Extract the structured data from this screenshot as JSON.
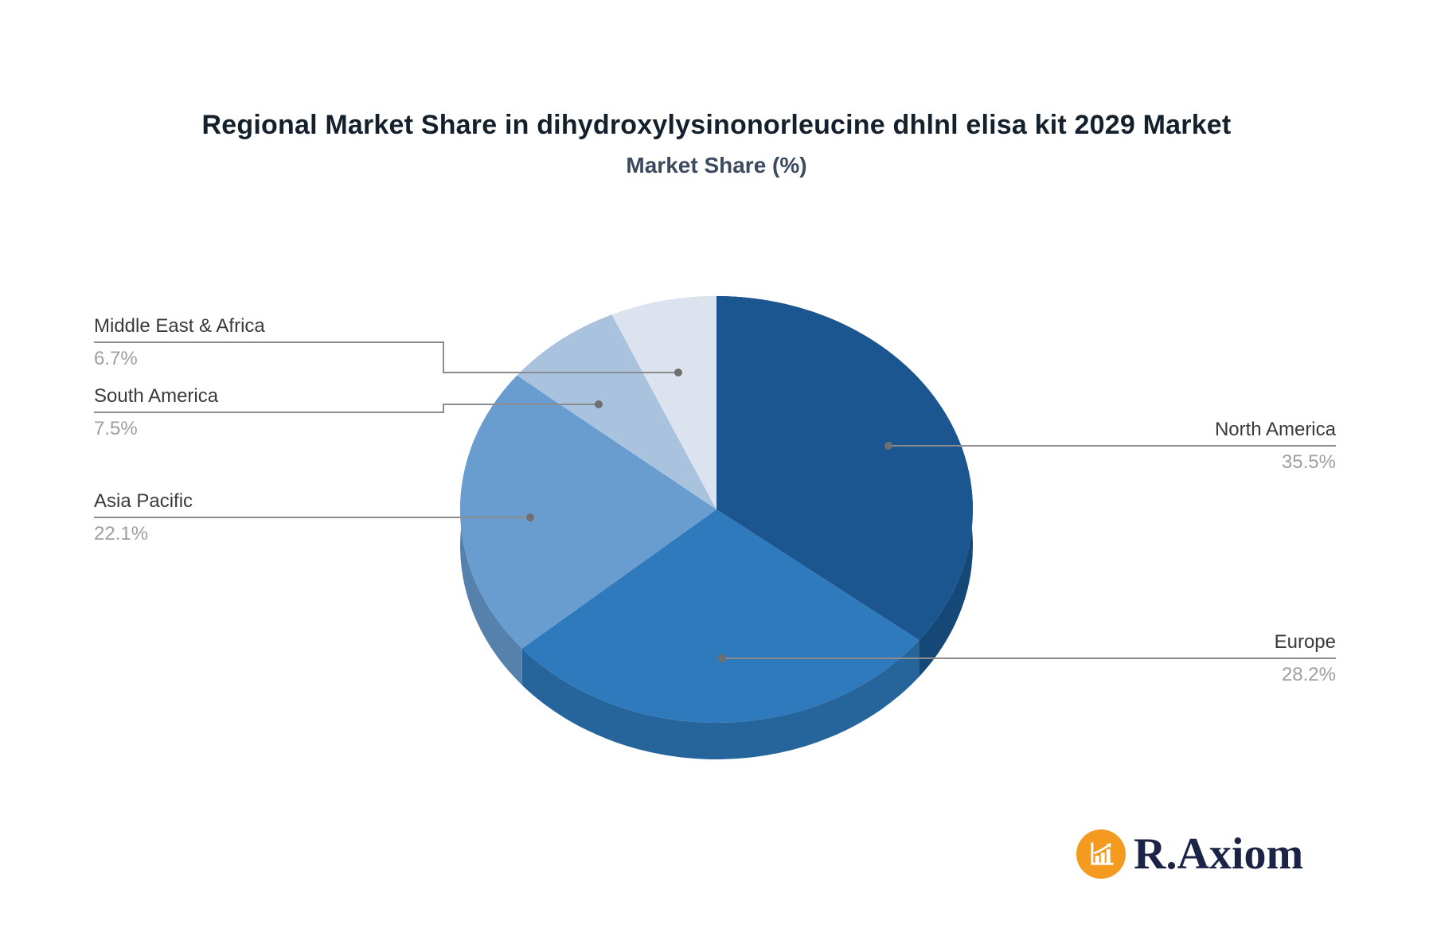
{
  "page": {
    "background": "#ffffff"
  },
  "header": {
    "title": "Regional Market Share in dihydroxylysinonorleucine dhlnl elisa kit 2029 Market",
    "subtitle": "Market Share (%)"
  },
  "chart_data": {
    "type": "pie",
    "title": "Regional Market Share in dihydroxylysinonorleucine dhlnl elisa kit 2029 Market",
    "subtitle": "Market Share (%)",
    "unit": "%",
    "effect": "3d-depth",
    "start_angle": "12-oclock-clockwise",
    "legend_position": "callout-labels",
    "slices": [
      {
        "label": "North America",
        "value": 35.5,
        "value_label": "35.5%",
        "color": "#1B5691",
        "side_color": "#154876"
      },
      {
        "label": "Europe",
        "value": 28.2,
        "value_label": "28.2%",
        "color": "#2F7ABD",
        "side_color": "#26649C"
      },
      {
        "label": "Asia Pacific",
        "value": 22.1,
        "value_label": "22.1%",
        "color": "#699DD0",
        "side_color": "#5681AC"
      },
      {
        "label": "South America",
        "value": 7.5,
        "value_label": "7.5%",
        "color": "#A9C3DF",
        "side_color": "#8BA4BF"
      },
      {
        "label": "Middle East & Africa",
        "value": 6.7,
        "value_label": "6.7%",
        "color": "#DCE3EF",
        "side_color": "#B8C3D4"
      }
    ],
    "label_text_color": "#3A3A3A",
    "value_text_color": "#9E9E9E",
    "connector_color": "#8C8C8C",
    "connector_dot_color": "#6F6F6F"
  },
  "branding": {
    "logo_text": "R.Axiom",
    "logo_icon": "bar-chart-growth-icon",
    "icon_bg_color": "#F49B1F",
    "icon_glyph_color": "#FFFFFF",
    "logo_text_color": "#1B2347"
  }
}
